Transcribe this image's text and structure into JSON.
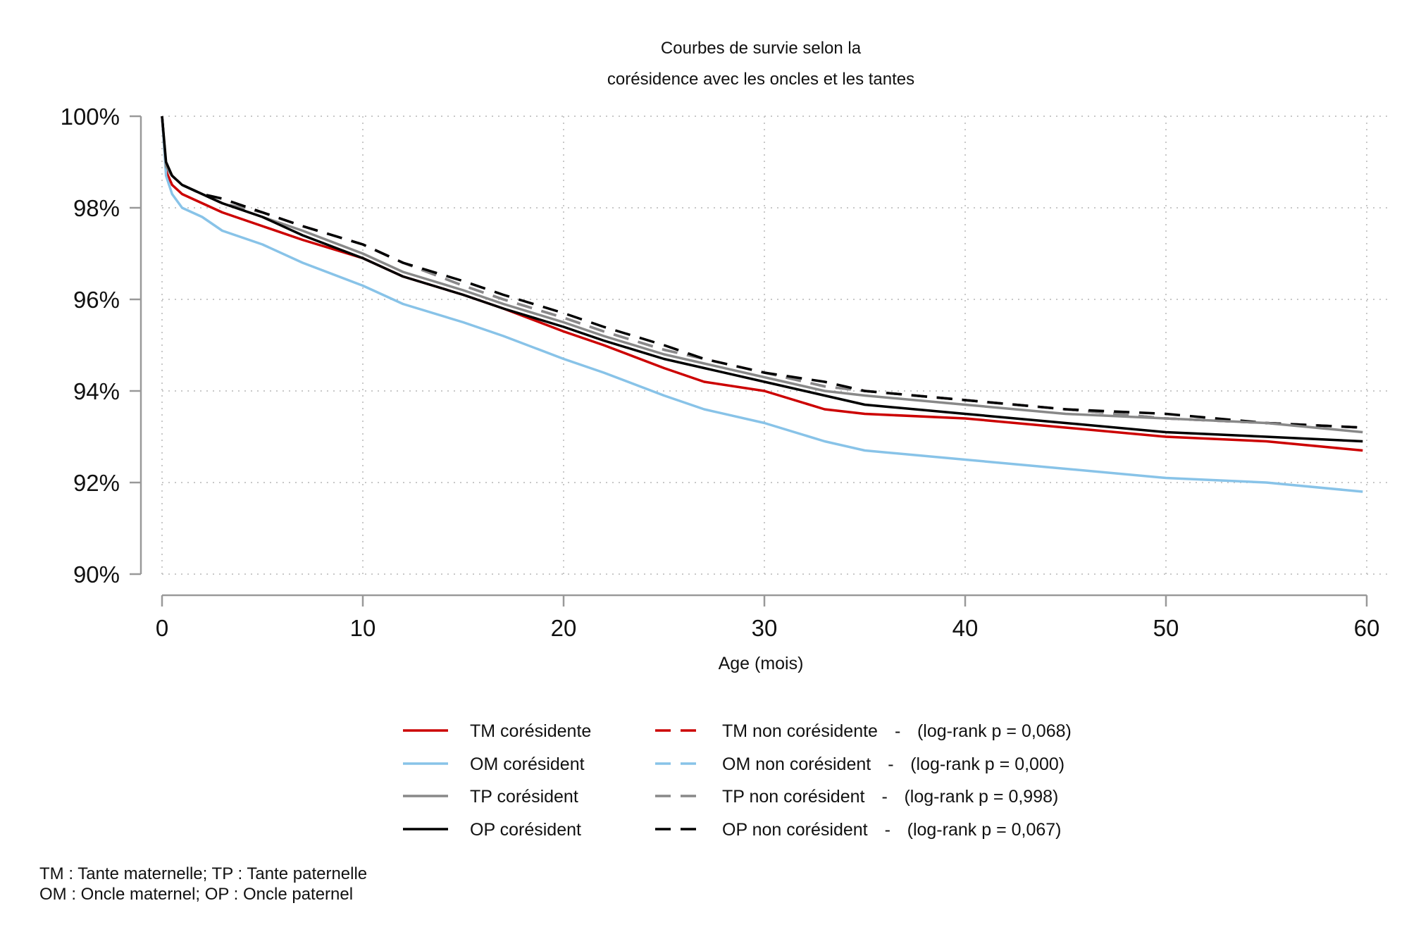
{
  "chart_data": {
    "type": "line",
    "title": [
      "Courbes de survie selon la",
      "corésidence avec les oncles et les tantes"
    ],
    "xlabel": "Age (mois)",
    "ylabel": "",
    "xlim": [
      0,
      60
    ],
    "ylim": [
      90,
      100
    ],
    "x_ticks": [
      0,
      10,
      20,
      30,
      40,
      50,
      60
    ],
    "y_ticks": [
      90,
      92,
      94,
      96,
      98,
      100
    ],
    "y_tick_labels": [
      "90%",
      "92%",
      "94%",
      "96%",
      "98%",
      "100%"
    ],
    "grid": true,
    "legend_position": "bottom",
    "series": [
      {
        "name": "TM corésidente",
        "color": "#cc0000",
        "style": "solid",
        "x": [
          0,
          0.2,
          0.5,
          1,
          2,
          3,
          5,
          7,
          10,
          12,
          15,
          17,
          20,
          22,
          25,
          27,
          30,
          33,
          35,
          40,
          45,
          50,
          55,
          59.8
        ],
        "y": [
          100,
          98.8,
          98.5,
          98.3,
          98.1,
          97.9,
          97.6,
          97.3,
          96.9,
          96.5,
          96.1,
          95.8,
          95.3,
          95.0,
          94.5,
          94.2,
          94.0,
          93.6,
          93.5,
          93.4,
          93.2,
          93.0,
          92.9,
          92.7
        ]
      },
      {
        "name": "OM corésident",
        "color": "#88c3e8",
        "style": "solid",
        "x": [
          0,
          0.2,
          0.5,
          1,
          2,
          3,
          5,
          7,
          10,
          12,
          15,
          17,
          20,
          22,
          25,
          27,
          30,
          33,
          35,
          40,
          45,
          50,
          55,
          59.8
        ],
        "y": [
          100,
          98.7,
          98.3,
          98.0,
          97.8,
          97.5,
          97.2,
          96.8,
          96.3,
          95.9,
          95.5,
          95.2,
          94.7,
          94.4,
          93.9,
          93.6,
          93.3,
          92.9,
          92.7,
          92.5,
          92.3,
          92.1,
          92.0,
          91.8
        ]
      },
      {
        "name": "TP corésident",
        "color": "#888888",
        "style": "solid",
        "x": [
          0,
          0.2,
          0.5,
          1,
          2,
          3,
          5,
          7,
          10,
          12,
          15,
          17,
          20,
          22,
          25,
          27,
          30,
          33,
          35,
          40,
          45,
          50,
          55,
          59.8
        ],
        "y": [
          100,
          98.9,
          98.7,
          98.5,
          98.3,
          98.1,
          97.8,
          97.5,
          97.0,
          96.6,
          96.2,
          95.9,
          95.5,
          95.2,
          94.8,
          94.6,
          94.3,
          94.0,
          93.9,
          93.7,
          93.5,
          93.4,
          93.3,
          93.1
        ]
      },
      {
        "name": "OP corésident",
        "color": "#000000",
        "style": "solid",
        "x": [
          0,
          0.2,
          0.5,
          1,
          2,
          3,
          5,
          7,
          10,
          12,
          15,
          17,
          20,
          22,
          25,
          27,
          30,
          33,
          35,
          40,
          45,
          50,
          55,
          59.8
        ],
        "y": [
          100,
          99.0,
          98.7,
          98.5,
          98.3,
          98.1,
          97.8,
          97.4,
          96.9,
          96.5,
          96.1,
          95.8,
          95.4,
          95.1,
          94.7,
          94.5,
          94.2,
          93.9,
          93.7,
          93.5,
          93.3,
          93.1,
          93.0,
          92.9
        ]
      },
      {
        "name": "TM non corésidente",
        "color": "#cc0000",
        "style": "dashed",
        "x": [
          0,
          0.2,
          0.5,
          1,
          2,
          3,
          5,
          7,
          10,
          12,
          15,
          17,
          20,
          22,
          25,
          27,
          30,
          33,
          35,
          40,
          45,
          50,
          55,
          59.8
        ],
        "y": [
          100,
          98.9,
          98.7,
          98.5,
          98.3,
          98.1,
          97.9,
          97.6,
          97.2,
          96.8,
          96.3,
          96.0,
          95.6,
          95.3,
          94.9,
          94.7,
          94.4,
          94.1,
          94.0,
          93.8,
          93.6,
          93.4,
          93.3,
          93.2
        ]
      },
      {
        "name": "OM non corésident",
        "color": "#88c3e8",
        "style": "dashed",
        "x": [
          0,
          0.2,
          0.5,
          1,
          2,
          3,
          5,
          7,
          10,
          12,
          15,
          17,
          20,
          22,
          25,
          27,
          30,
          33,
          35,
          40,
          45,
          50,
          55,
          59.8
        ],
        "y": [
          100,
          98.9,
          98.7,
          98.5,
          98.3,
          98.1,
          97.9,
          97.6,
          97.2,
          96.8,
          96.3,
          96.0,
          95.6,
          95.3,
          94.9,
          94.7,
          94.4,
          94.1,
          94.0,
          93.8,
          93.6,
          93.4,
          93.3,
          93.2
        ]
      },
      {
        "name": "TP non corésident",
        "color": "#888888",
        "style": "dashed",
        "x": [
          0,
          0.2,
          0.5,
          1,
          2,
          3,
          5,
          7,
          10,
          12,
          15,
          17,
          20,
          22,
          25,
          27,
          30,
          33,
          35,
          40,
          45,
          50,
          55,
          59.8
        ],
        "y": [
          100,
          98.9,
          98.7,
          98.5,
          98.3,
          98.1,
          97.9,
          97.6,
          97.2,
          96.8,
          96.3,
          96.0,
          95.6,
          95.3,
          94.9,
          94.7,
          94.4,
          94.1,
          94.0,
          93.8,
          93.6,
          93.4,
          93.3,
          93.2
        ]
      },
      {
        "name": "OP non corésident",
        "color": "#000000",
        "style": "dashed",
        "x": [
          0,
          0.2,
          0.5,
          1,
          2,
          3,
          5,
          7,
          10,
          12,
          15,
          17,
          20,
          22,
          25,
          27,
          30,
          33,
          35,
          40,
          45,
          50,
          55,
          59.8
        ],
        "y": [
          100,
          98.9,
          98.7,
          98.5,
          98.3,
          98.2,
          97.9,
          97.6,
          97.2,
          96.8,
          96.4,
          96.1,
          95.7,
          95.4,
          95.0,
          94.7,
          94.4,
          94.2,
          94.0,
          93.8,
          93.6,
          93.5,
          93.3,
          93.2
        ]
      }
    ],
    "legend": [
      {
        "series": "TM corésidente",
        "color": "#cc0000",
        "style": "solid",
        "label": "TM corésidente",
        "test": ""
      },
      {
        "series": "OM corésident",
        "color": "#88c3e8",
        "style": "solid",
        "label": "OM corésident",
        "test": ""
      },
      {
        "series": "TP corésident",
        "color": "#888888",
        "style": "solid",
        "label": "TP corésident",
        "test": ""
      },
      {
        "series": "OP corésident",
        "color": "#000000",
        "style": "solid",
        "label": "OP corésident",
        "test": ""
      },
      {
        "series": "TM non corésidente",
        "color": "#cc0000",
        "style": "dashed",
        "label": "TM non corésidente",
        "test": "(log-rank p = 0,068)"
      },
      {
        "series": "OM non corésident",
        "color": "#88c3e8",
        "style": "dashed",
        "label": "OM non corésident",
        "test": "(log-rank p = 0,000)"
      },
      {
        "series": "TP non corésident",
        "color": "#888888",
        "style": "dashed",
        "label": "TP non corésident",
        "test": "(log-rank p = 0,998)"
      },
      {
        "series": "OP non corésident",
        "color": "#000000",
        "style": "dashed",
        "label": "OP non corésident",
        "test": "(log-rank p = 0,067)"
      }
    ],
    "legend_separator": "-",
    "notes": [
      "TM : Tante maternelle; TP : Tante paternelle",
      "OM : Oncle maternel; OP : Oncle paternel"
    ]
  }
}
